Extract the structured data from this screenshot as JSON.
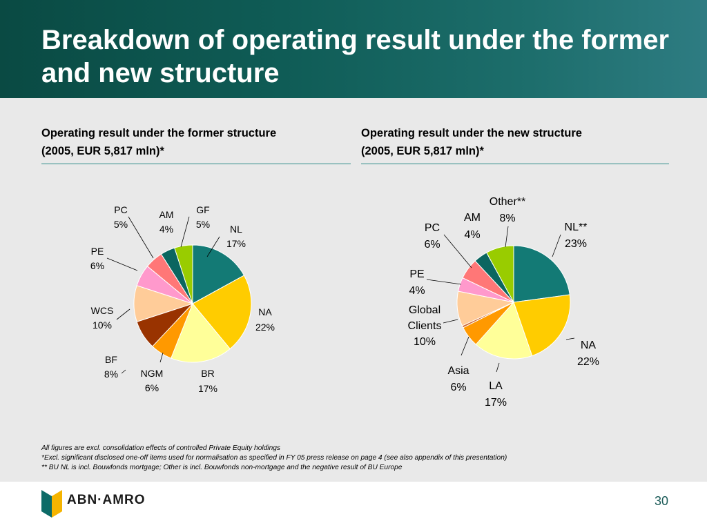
{
  "slide": {
    "title": "Breakdown of operating result under the former and new structure",
    "page_number": "30",
    "logo_text": "ABN·AMRO"
  },
  "panels": {
    "former": {
      "title_line1": "Operating result under the former structure",
      "title_line2": "(2005, EUR 5,817 mln)*"
    },
    "new": {
      "title_line1": "Operating result under the new structure",
      "title_line2": "(2005, EUR 5,817 mln)*"
    }
  },
  "footnotes": [
    "All figures are excl. consolidation effects of controlled Private Equity holdings",
    "*Excl. significant disclosed one-off items used for normalisation as specified in FY 05 press release on page 4 (see also appendix of this presentation)",
    "** BU NL is  incl. Bouwfonds mortgage; Other is incl. Bouwfonds non-mortgage and the negative result of BU Europe"
  ],
  "chart_data": [
    {
      "type": "pie",
      "title": "Operating result under the former structure",
      "subtitle": "(2005, EUR 5,817 mln)*",
      "slices": [
        {
          "name": "NL",
          "value": 17,
          "label": "17%",
          "color": "#137a75"
        },
        {
          "name": "NA",
          "value": 22,
          "label": "22%",
          "color": "#ffcc00"
        },
        {
          "name": "BR",
          "value": 17,
          "label": "17%",
          "color": "#ffff99"
        },
        {
          "name": "NGM",
          "value": 6,
          "label": "6%",
          "color": "#ff9900"
        },
        {
          "name": "BF",
          "value": 8,
          "label": "8%",
          "color": "#993300"
        },
        {
          "name": "WCS",
          "value": 10,
          "label": "10%",
          "color": "#ffcc99"
        },
        {
          "name": "PE",
          "value": 6,
          "label": "6%",
          "color": "#ff99cc"
        },
        {
          "name": "PC",
          "value": 5,
          "label": "5%",
          "color": "#ff7777"
        },
        {
          "name": "AM",
          "value": 4,
          "label": "4%",
          "color": "#0b6660"
        },
        {
          "name": "GF",
          "value": 5,
          "label": "5%",
          "color": "#99cc00"
        }
      ]
    },
    {
      "type": "pie",
      "title": "Operating result under the new structure",
      "subtitle": "(2005, EUR 5,817 mln)*",
      "slices": [
        {
          "name": "NL**",
          "value": 23,
          "label": "23%",
          "color": "#137a75"
        },
        {
          "name": "NA",
          "value": 22,
          "label": "22%",
          "color": "#ffcc00"
        },
        {
          "name": "LA",
          "value": 17,
          "label": "17%",
          "color": "#ffff99"
        },
        {
          "name": "Asia",
          "value": 6,
          "label": "6%",
          "color": "#ff9900"
        },
        {
          "name": "",
          "value": 0.6,
          "label": "",
          "color": "#cc6633"
        },
        {
          "name": "Global Clients",
          "value": 10,
          "label": "10%",
          "color": "#ffcc99"
        },
        {
          "name": "PE",
          "value": 4,
          "label": "4%",
          "color": "#ff99cc"
        },
        {
          "name": "PC",
          "value": 6,
          "label": "6%",
          "color": "#ff7777"
        },
        {
          "name": "AM",
          "value": 4,
          "label": "4%",
          "color": "#0b6660"
        },
        {
          "name": "Other**",
          "value": 8,
          "label": "8%",
          "color": "#99cc00"
        }
      ]
    }
  ]
}
